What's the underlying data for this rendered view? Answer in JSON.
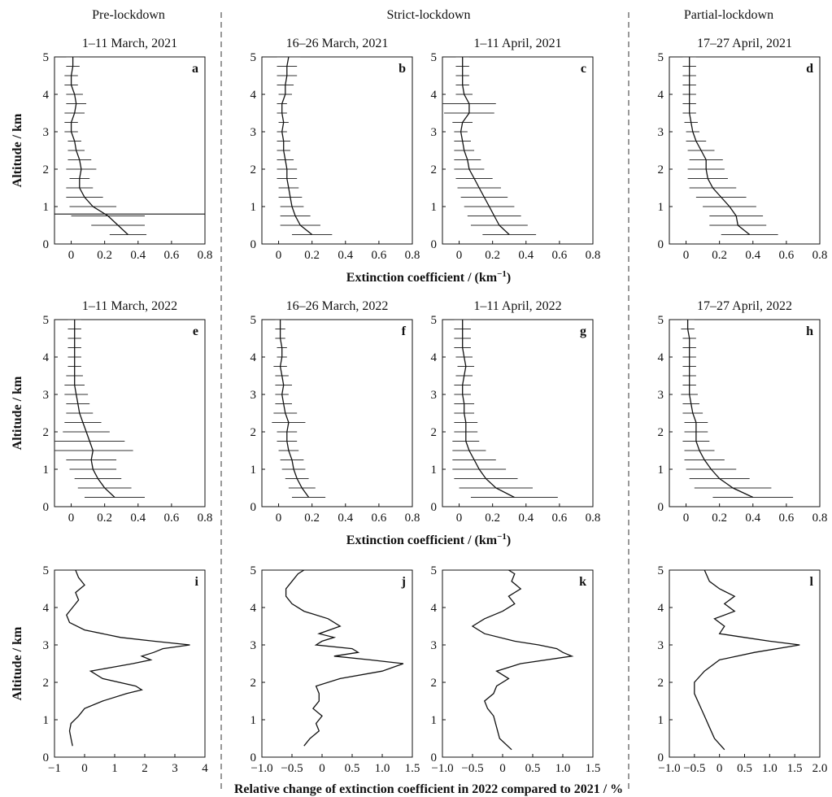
{
  "headers": [
    "Pre-lockdown",
    "Strict-lockdown",
    "Partial-lockdown"
  ],
  "xlabels": {
    "row1": "Extinction coefficient / (km",
    "row2": "Extinction coefficient / (km",
    "exponent": "−1",
    "close": ")",
    "row3": "Relative change of extinction coefficient in 2022 compared to 2021 / %"
  },
  "ylabel": "Altitude / km",
  "chart_data": [
    {
      "id": "a",
      "type": "line",
      "title": "1–11 March, 2021",
      "xlim": [
        -0.1,
        0.8
      ],
      "xticks": [
        0,
        0.2,
        0.4,
        0.6,
        0.8
      ],
      "xticklabels": [
        "0",
        "0.2",
        "0.4",
        "0.6",
        "0.8"
      ],
      "ylim": [
        0,
        5
      ],
      "yticks": [
        0,
        1,
        2,
        3,
        4,
        5
      ],
      "ylabel": "Altitude / km",
      "y": [
        0.25,
        0.5,
        0.75,
        1,
        1.25,
        1.5,
        1.75,
        2,
        2.25,
        2.5,
        2.75,
        3,
        3.25,
        3.5,
        3.75,
        4,
        4.25,
        4.5,
        4.75,
        5
      ],
      "x": [
        0.34,
        0.28,
        0.22,
        0.13,
        0.08,
        0.05,
        0.05,
        0.06,
        0.05,
        0.03,
        0.02,
        0.0,
        0.0,
        0.02,
        0.03,
        0.02,
        0.0,
        0.0,
        0.01,
        0.01
      ],
      "err": [
        0.11,
        0.16,
        0.22,
        0.14,
        0.11,
        0.08,
        0.06,
        0.09,
        0.07,
        0.05,
        0.04,
        0.04,
        0.04,
        0.06,
        0.06,
        0.05,
        0.04,
        0.04,
        0.04,
        0.04
      ],
      "special_error_bar": {
        "y": 0.8,
        "xmin": -0.1,
        "xmax": 0.8
      }
    },
    {
      "id": "b",
      "type": "line",
      "title": "16–26 March, 2021",
      "xlim": [
        -0.1,
        0.8
      ],
      "xticks": [
        0,
        0.2,
        0.4,
        0.6,
        0.8
      ],
      "xticklabels": [
        "0",
        "0.2",
        "0.4",
        "0.6",
        "0.8"
      ],
      "ylim": [
        0,
        5
      ],
      "yticks": [
        0,
        1,
        2,
        3,
        4,
        5
      ],
      "y": [
        0.25,
        0.5,
        0.75,
        1,
        1.25,
        1.5,
        1.75,
        2,
        2.25,
        2.5,
        2.75,
        3,
        3.25,
        3.5,
        3.75,
        4,
        4.25,
        4.5,
        4.75,
        5
      ],
      "x": [
        0.2,
        0.13,
        0.1,
        0.08,
        0.07,
        0.06,
        0.05,
        0.05,
        0.04,
        0.03,
        0.03,
        0.02,
        0.03,
        0.02,
        0.02,
        0.04,
        0.04,
        0.05,
        0.05,
        0.06
      ],
      "err": [
        0.12,
        0.12,
        0.09,
        0.07,
        0.07,
        0.06,
        0.06,
        0.06,
        0.05,
        0.04,
        0.04,
        0.03,
        0.03,
        0.03,
        0.03,
        0.04,
        0.05,
        0.06,
        0.06,
        0.07
      ]
    },
    {
      "id": "c",
      "type": "line",
      "title": "1–11 April, 2021",
      "xlim": [
        -0.1,
        0.8
      ],
      "xticks": [
        0,
        0.2,
        0.4,
        0.6,
        0.8
      ],
      "xticklabels": [
        "0",
        "0.2",
        "0.4",
        "0.6",
        "0.8"
      ],
      "ylim": [
        0,
        5
      ],
      "yticks": [
        0,
        1,
        2,
        3,
        4,
        5
      ],
      "y": [
        0.25,
        0.5,
        0.75,
        1,
        1.25,
        1.5,
        1.75,
        2,
        2.25,
        2.5,
        2.75,
        3,
        3.25,
        3.5,
        3.75,
        4,
        4.25,
        4.5,
        4.75,
        5
      ],
      "x": [
        0.3,
        0.24,
        0.21,
        0.18,
        0.15,
        0.12,
        0.09,
        0.06,
        0.05,
        0.03,
        0.02,
        0.01,
        0.02,
        0.06,
        0.06,
        0.03,
        0.02,
        0.02,
        0.02,
        0.02
      ],
      "err": [
        0.16,
        0.17,
        0.16,
        0.15,
        0.14,
        0.13,
        0.11,
        0.09,
        0.08,
        0.06,
        0.05,
        0.04,
        0.06,
        0.15,
        0.16,
        0.05,
        0.04,
        0.04,
        0.04,
        0.04
      ]
    },
    {
      "id": "d",
      "type": "line",
      "title": "17–27 April, 2021",
      "xlim": [
        -0.1,
        0.8
      ],
      "xticks": [
        0,
        0.2,
        0.4,
        0.6,
        0.8
      ],
      "xticklabels": [
        "0",
        "0.2",
        "0.4",
        "0.6",
        "0.8"
      ],
      "ylim": [
        0,
        5
      ],
      "yticks": [
        0,
        1,
        2,
        3,
        4,
        5
      ],
      "y": [
        0.25,
        0.5,
        0.75,
        1,
        1.25,
        1.5,
        1.75,
        2,
        2.25,
        2.5,
        2.75,
        3,
        3.25,
        3.5,
        3.75,
        4,
        4.25,
        4.5,
        4.75,
        5
      ],
      "x": [
        0.38,
        0.31,
        0.3,
        0.26,
        0.21,
        0.16,
        0.13,
        0.12,
        0.12,
        0.09,
        0.06,
        0.04,
        0.03,
        0.02,
        0.02,
        0.02,
        0.02,
        0.02,
        0.02,
        0.02
      ],
      "err": [
        0.17,
        0.17,
        0.16,
        0.16,
        0.15,
        0.14,
        0.12,
        0.11,
        0.1,
        0.08,
        0.06,
        0.04,
        0.04,
        0.04,
        0.04,
        0.04,
        0.04,
        0.04,
        0.04,
        0.04
      ]
    },
    {
      "id": "e",
      "type": "line",
      "title": "1–11 March, 2022",
      "xlim": [
        -0.1,
        0.8
      ],
      "xticks": [
        0,
        0.2,
        0.4,
        0.6,
        0.8
      ],
      "xticklabels": [
        "0",
        "0.2",
        "0.4",
        "0.6",
        "0.8"
      ],
      "ylim": [
        0,
        5
      ],
      "yticks": [
        0,
        1,
        2,
        3,
        4,
        5
      ],
      "ylabel": "Altitude / km",
      "y": [
        0.25,
        0.5,
        0.75,
        1,
        1.25,
        1.5,
        1.75,
        2,
        2.25,
        2.5,
        2.75,
        3,
        3.25,
        3.5,
        3.75,
        4,
        4.25,
        4.5,
        4.75,
        5
      ],
      "x": [
        0.26,
        0.2,
        0.16,
        0.13,
        0.12,
        0.13,
        0.11,
        0.09,
        0.07,
        0.05,
        0.04,
        0.03,
        0.02,
        0.02,
        0.02,
        0.02,
        0.02,
        0.02,
        0.02,
        0.02
      ],
      "err": [
        0.18,
        0.16,
        0.14,
        0.14,
        0.15,
        0.24,
        0.21,
        0.14,
        0.11,
        0.08,
        0.07,
        0.07,
        0.06,
        0.05,
        0.04,
        0.04,
        0.04,
        0.04,
        0.04,
        0.04
      ]
    },
    {
      "id": "f",
      "type": "line",
      "title": "16–26 March, 2022",
      "xlim": [
        -0.1,
        0.8
      ],
      "xticks": [
        0,
        0.2,
        0.4,
        0.6,
        0.8
      ],
      "xticklabels": [
        "0",
        "0.2",
        "0.4",
        "0.6",
        "0.8"
      ],
      "ylim": [
        0,
        5
      ],
      "yticks": [
        0,
        1,
        2,
        3,
        4,
        5
      ],
      "y": [
        0.25,
        0.5,
        0.75,
        1,
        1.25,
        1.5,
        1.75,
        2,
        2.25,
        2.5,
        2.75,
        3,
        3.25,
        3.5,
        3.75,
        4,
        4.25,
        4.5,
        4.75,
        5
      ],
      "x": [
        0.18,
        0.14,
        0.11,
        0.09,
        0.08,
        0.06,
        0.05,
        0.05,
        0.06,
        0.04,
        0.03,
        0.02,
        0.03,
        0.02,
        0.01,
        0.02,
        0.02,
        0.01,
        0.01,
        0.01
      ],
      "err": [
        0.1,
        0.08,
        0.07,
        0.07,
        0.07,
        0.06,
        0.06,
        0.06,
        0.1,
        0.07,
        0.05,
        0.04,
        0.05,
        0.04,
        0.04,
        0.03,
        0.03,
        0.03,
        0.03,
        0.03
      ]
    },
    {
      "id": "g",
      "type": "line",
      "title": "1–11 April, 2022",
      "xlim": [
        -0.1,
        0.8
      ],
      "xticks": [
        0,
        0.2,
        0.4,
        0.6,
        0.8
      ],
      "xticklabels": [
        "0",
        "0.2",
        "0.4",
        "0.6",
        "0.8"
      ],
      "ylim": [
        0,
        5
      ],
      "yticks": [
        0,
        1,
        2,
        3,
        4,
        5
      ],
      "y": [
        0.25,
        0.5,
        0.75,
        1,
        1.25,
        1.5,
        1.75,
        2,
        2.25,
        2.5,
        2.75,
        3,
        3.25,
        3.5,
        3.75,
        4,
        4.25,
        4.5,
        4.75,
        5
      ],
      "x": [
        0.33,
        0.22,
        0.16,
        0.12,
        0.09,
        0.06,
        0.04,
        0.04,
        0.04,
        0.03,
        0.03,
        0.02,
        0.02,
        0.03,
        0.04,
        0.03,
        0.02,
        0.02,
        0.02,
        0.02
      ],
      "err": [
        0.26,
        0.22,
        0.19,
        0.16,
        0.13,
        0.1,
        0.08,
        0.07,
        0.07,
        0.06,
        0.06,
        0.05,
        0.05,
        0.05,
        0.05,
        0.05,
        0.05,
        0.05,
        0.05,
        0.05
      ]
    },
    {
      "id": "h",
      "type": "line",
      "title": "17–27 April, 2022",
      "xlim": [
        -0.1,
        0.8
      ],
      "xticks": [
        0,
        0.2,
        0.4,
        0.6,
        0.8
      ],
      "xticklabels": [
        "0",
        "0.2",
        "0.4",
        "0.6",
        "0.8"
      ],
      "ylim": [
        0,
        5
      ],
      "yticks": [
        0,
        1,
        2,
        3,
        4,
        5
      ],
      "y": [
        0.25,
        0.5,
        0.75,
        1,
        1.25,
        1.5,
        1.75,
        2,
        2.25,
        2.5,
        2.75,
        3,
        3.25,
        3.5,
        3.75,
        4,
        4.25,
        4.5,
        4.75,
        5
      ],
      "x": [
        0.4,
        0.28,
        0.2,
        0.15,
        0.11,
        0.08,
        0.06,
        0.06,
        0.06,
        0.04,
        0.03,
        0.02,
        0.02,
        0.02,
        0.02,
        0.02,
        0.02,
        0.02,
        0.01,
        0.01
      ],
      "err": [
        0.24,
        0.23,
        0.18,
        0.15,
        0.12,
        0.09,
        0.08,
        0.07,
        0.07,
        0.06,
        0.05,
        0.05,
        0.04,
        0.04,
        0.04,
        0.04,
        0.04,
        0.04,
        0.04,
        0.04
      ]
    },
    {
      "id": "i",
      "type": "line",
      "title": "",
      "xlim": [
        -1,
        4
      ],
      "xticks": [
        -1,
        0,
        1,
        2,
        3,
        4
      ],
      "xticklabels": [
        "−1",
        "0",
        "1",
        "2",
        "3",
        "4"
      ],
      "ylim": [
        0,
        5
      ],
      "yticks": [
        0,
        1,
        2,
        3,
        4,
        5
      ],
      "ylabel": "Altitude / km",
      "y": [
        0.3,
        0.5,
        0.7,
        0.9,
        1.1,
        1.3,
        1.5,
        1.7,
        1.8,
        1.9,
        2.1,
        2.3,
        2.4,
        2.5,
        2.6,
        2.7,
        2.8,
        2.9,
        3.0,
        3.1,
        3.2,
        3.4,
        3.6,
        3.8,
        4.0,
        4.2,
        4.4,
        4.6,
        4.8,
        5.0
      ],
      "x": [
        -0.4,
        -0.45,
        -0.5,
        -0.45,
        -0.2,
        0.0,
        0.6,
        1.4,
        1.9,
        1.7,
        0.6,
        0.2,
        0.9,
        1.6,
        2.2,
        1.9,
        2.3,
        2.6,
        3.5,
        2.3,
        1.2,
        0.0,
        -0.5,
        -0.6,
        -0.4,
        -0.2,
        -0.3,
        0.0,
        -0.2,
        -0.3
      ]
    },
    {
      "id": "j",
      "type": "line",
      "title": "",
      "xlim": [
        -1,
        1.5
      ],
      "xticks": [
        -1,
        -0.5,
        0,
        0.5,
        1,
        1.5
      ],
      "xticklabels": [
        "−1.0",
        "−0.5",
        "0",
        "0.5",
        "1.0",
        "1.5"
      ],
      "ylim": [
        0,
        5
      ],
      "yticks": [
        0,
        1,
        2,
        3,
        4,
        5
      ],
      "y": [
        0.3,
        0.5,
        0.7,
        0.9,
        1.1,
        1.3,
        1.5,
        1.7,
        1.9,
        2.1,
        2.3,
        2.5,
        2.6,
        2.7,
        2.8,
        2.9,
        3.0,
        3.1,
        3.2,
        3.3,
        3.5,
        3.7,
        3.9,
        4.1,
        4.3,
        4.5,
        4.7,
        4.9,
        5.0
      ],
      "x": [
        -0.3,
        -0.2,
        -0.05,
        -0.1,
        0.0,
        -0.15,
        -0.05,
        -0.05,
        -0.1,
        0.3,
        1.0,
        1.35,
        0.8,
        0.2,
        0.6,
        0.5,
        -0.1,
        0.0,
        0.2,
        -0.05,
        0.3,
        0.1,
        -0.3,
        -0.5,
        -0.6,
        -0.6,
        -0.5,
        -0.4,
        -0.3
      ]
    },
    {
      "id": "k",
      "type": "line",
      "title": "",
      "xlim": [
        -1,
        1.5
      ],
      "xticks": [
        -1,
        -0.5,
        0,
        0.5,
        1,
        1.5
      ],
      "xticklabels": [
        "−1.0",
        "−0.5",
        "0",
        "0.5",
        "1.0",
        "1.5"
      ],
      "ylim": [
        0,
        5
      ],
      "yticks": [
        0,
        1,
        2,
        3,
        4,
        5
      ],
      "y": [
        0.2,
        0.5,
        0.8,
        1.1,
        1.3,
        1.5,
        1.7,
        1.9,
        2.1,
        2.3,
        2.5,
        2.7,
        2.8,
        2.9,
        3.0,
        3.1,
        3.3,
        3.5,
        3.7,
        3.9,
        4.1,
        4.3,
        4.5,
        4.7,
        4.9,
        5.0
      ],
      "x": [
        0.15,
        -0.05,
        -0.1,
        -0.15,
        -0.25,
        -0.3,
        -0.15,
        -0.1,
        0.1,
        -0.1,
        0.3,
        1.15,
        1.0,
        0.9,
        0.6,
        0.2,
        -0.3,
        -0.5,
        -0.3,
        0.0,
        0.2,
        0.1,
        0.3,
        0.15,
        0.2,
        0.1
      ]
    },
    {
      "id": "l",
      "type": "line",
      "title": "",
      "xlim": [
        -1,
        2
      ],
      "xticks": [
        -1,
        -0.5,
        0,
        0.5,
        1,
        1.5,
        2
      ],
      "xticklabels": [
        "−1.0",
        "−0.5",
        "0",
        "0.5",
        "1.0",
        "1.5",
        "2.0"
      ],
      "ylim": [
        0,
        5
      ],
      "yticks": [
        0,
        1,
        2,
        3,
        4,
        5
      ],
      "y": [
        0.2,
        0.5,
        0.8,
        1.1,
        1.4,
        1.7,
        2.0,
        2.3,
        2.6,
        2.8,
        3.0,
        3.1,
        3.2,
        3.3,
        3.5,
        3.7,
        3.9,
        4.1,
        4.3,
        4.5,
        4.7,
        5.0
      ],
      "x": [
        0.1,
        -0.1,
        -0.2,
        -0.3,
        -0.4,
        -0.5,
        -0.5,
        -0.3,
        0.0,
        0.7,
        1.6,
        1.0,
        0.5,
        0.0,
        0.1,
        -0.1,
        0.3,
        0.1,
        0.3,
        0.0,
        -0.2,
        -0.3
      ]
    }
  ]
}
